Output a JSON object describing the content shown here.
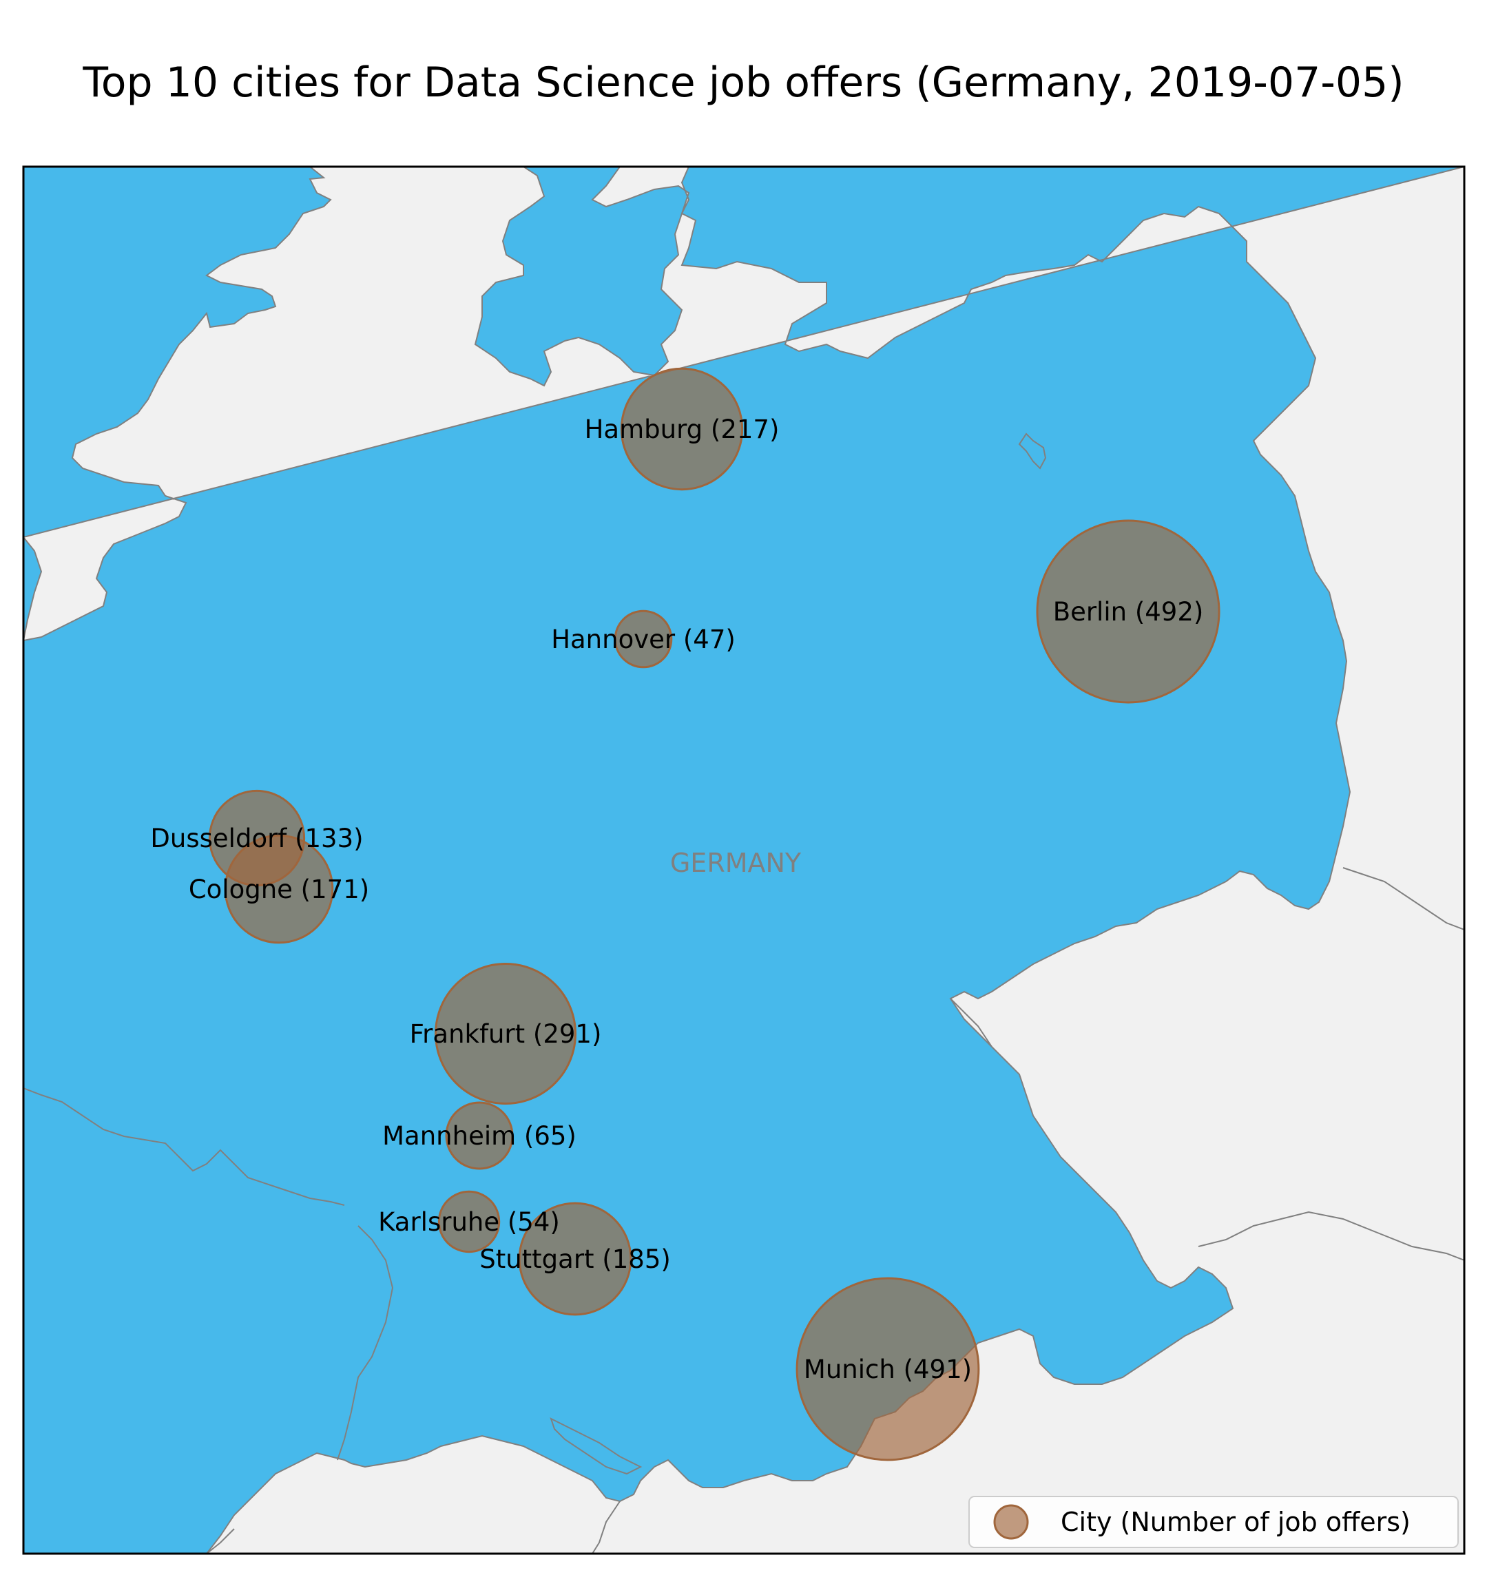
{
  "title": "Top 10 cities for Data Science job offers (Germany, 2019-07-05)",
  "country_label": "GERMANY",
  "legend": {
    "label": "City (Number of job offers)"
  },
  "colors": {
    "water": "#47b9eb",
    "land": "#f1f1f1",
    "border": "#808080",
    "bubble_fill": "#a0663c",
    "bubble_stroke": "#a0663c"
  },
  "cities": [
    {
      "name": "Hamburg",
      "count": 217,
      "label": "Hamburg (217)"
    },
    {
      "name": "Berlin",
      "count": 492,
      "label": "Berlin (492)"
    },
    {
      "name": "Hannover",
      "count": 47,
      "label": "Hannover (47)"
    },
    {
      "name": "Dusseldorf",
      "count": 133,
      "label": "Dusseldorf (133)"
    },
    {
      "name": "Cologne",
      "count": 171,
      "label": "Cologne (171)"
    },
    {
      "name": "Frankfurt",
      "count": 291,
      "label": "Frankfurt (291)"
    },
    {
      "name": "Mannheim",
      "count": 65,
      "label": "Mannheim (65)"
    },
    {
      "name": "Karlsruhe",
      "count": 54,
      "label": "Karlsruhe (54)"
    },
    {
      "name": "Stuttgart",
      "count": 185,
      "label": "Stuttgart (185)"
    },
    {
      "name": "Munich",
      "count": 491,
      "label": "Munich (491)"
    }
  ]
}
